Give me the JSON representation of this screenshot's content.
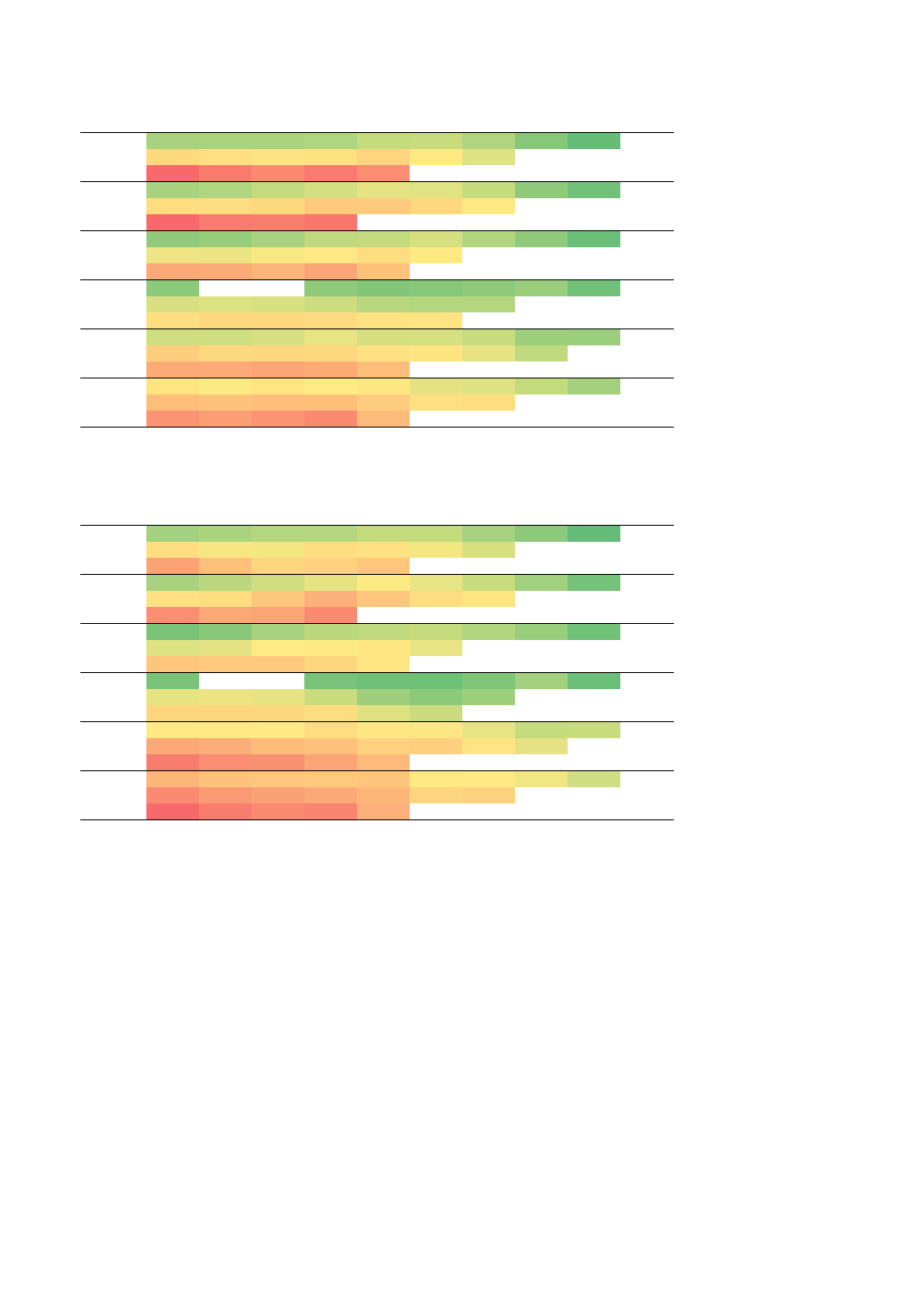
{
  "chart_data": [
    {
      "type": "heatmap",
      "title": "",
      "xlabel": "",
      "ylabel": "",
      "groups": [
        {
          "rows": [
            [
              "#a8d27f",
              "#aad380",
              "#aad380",
              "#aed57f",
              "#c5db7d",
              "#c8dc7e",
              "#b1d57e",
              "#87c77a",
              "#66bd77"
            ],
            [
              "#fed97e",
              "#fedf81",
              "#fee382",
              "#fee282",
              "#fed47f",
              "#fee983",
              "#dde283"
            ],
            [
              "#f8696b",
              "#f97b6e",
              "#fa8b71",
              "#f97a6e",
              "#fa8d72"
            ]
          ]
        },
        {
          "rows": [
            [
              "#a9d27f",
              "#b2d57f",
              "#c3da7d",
              "#d4df81",
              "#e5e383",
              "#e1e383",
              "#c6db7d",
              "#92ca7b",
              "#72c178"
            ],
            [
              "#fedc80",
              "#fedd80",
              "#fed87f",
              "#fec97d",
              "#fec97d",
              "#fed77f",
              "#fee983"
            ],
            [
              "#f8696b",
              "#f97a6e",
              "#f97e6f",
              "#f9766d"
            ]
          ]
        },
        {
          "rows": [
            [
              "#92ca7b",
              "#97cc7b",
              "#a8d27f",
              "#c0d97e",
              "#c3da7d",
              "#d5df80",
              "#b0d57e",
              "#91ca7b",
              "#6abf78"
            ],
            [
              "#eee484",
              "#ece383",
              "#f8e783",
              "#fde883",
              "#fedc80",
              "#feea83"
            ],
            [
              "#fca977",
              "#fcab77",
              "#fdb679",
              "#fba576",
              "#fec27b"
            ]
          ]
        },
        {
          "rows": [
            [
              "#8dc97b",
              null,
              null,
              "#8fca7b",
              "#83c67a",
              "#86c77a",
              "#8fca7b",
              "#9bce7c",
              "#72c178"
            ],
            [
              "#d8e081",
              "#dde283",
              "#d9e081",
              "#ccdd80",
              "#b8d77f",
              "#b4d67e",
              "#b3d67f"
            ],
            [
              "#fede80",
              "#fed97f",
              "#fed97f",
              "#fedb80",
              "#fee382",
              "#fee582"
            ]
          ]
        },
        {
          "rows": [
            [
              "#cddd7f",
              "#cfde80",
              "#d7e081",
              "#e8e383",
              "#d6df80",
              "#d7e081",
              "#c8dc7e",
              "#9ecf7d",
              "#9ccf7d"
            ],
            [
              "#fecd7e",
              "#fed87f",
              "#fed67f",
              "#fed87f",
              "#fee282",
              "#fee582",
              "#e7e383",
              "#bfd97e"
            ],
            [
              "#fcab77",
              "#fcaa77",
              "#fba476",
              "#fcab77",
              "#fdbe7b"
            ]
          ]
        },
        {
          "rows": [
            [
              "#fee582",
              "#feea83",
              "#fee582",
              "#ffeb84",
              "#fee683",
              "#e4e282",
              "#dee283",
              "#c4db7d",
              "#a5d17f"
            ],
            [
              "#fdbe7a",
              "#fec27b",
              "#fdbf7b",
              "#fdbe7a",
              "#fecc7e",
              "#fedf81",
              "#fedd80"
            ],
            [
              "#fa9473",
              "#fb9d75",
              "#fa9473",
              "#fa8b71",
              "#fdbb7a"
            ]
          ]
        }
      ]
    },
    {
      "type": "heatmap",
      "title": "",
      "xlabel": "",
      "ylabel": "",
      "groups": [
        {
          "rows": [
            [
              "#a3d17f",
              "#acd47f",
              "#b4d67e",
              "#b3d67f",
              "#c4db7d",
              "#c4db7d",
              "#a6d27f",
              "#8cc97b",
              "#63bc77"
            ],
            [
              "#fede80",
              "#f6e783",
              "#f3e683",
              "#fedd80",
              "#fee182",
              "#f3e683",
              "#d7e081"
            ],
            [
              "#fba276",
              "#fec07b",
              "#fed57f",
              "#fed17e",
              "#fec77c"
            ]
          ]
        },
        {
          "rows": [
            [
              "#a8d27f",
              "#bbd87e",
              "#d1de80",
              "#e6e383",
              "#feea83",
              "#e8e383",
              "#c9dc7e",
              "#a1d07e",
              "#75c279"
            ],
            [
              "#fee182",
              "#fedc80",
              "#fec67c",
              "#fdb079",
              "#fec57c",
              "#fedc80",
              "#fee582"
            ],
            [
              "#fa8d72",
              "#fca977",
              "#fba476",
              "#fa8b71"
            ]
          ]
        },
        {
          "rows": [
            [
              "#7ac379",
              "#89c77a",
              "#a7d27f",
              "#bcd87e",
              "#c0d97e",
              "#c5db7d",
              "#b2d57f",
              "#98cd7c",
              "#72c178"
            ],
            [
              "#dde283",
              "#e4e282",
              "#feeb84",
              "#feea83",
              "#fee782",
              "#e8e383"
            ],
            [
              "#fec57c",
              "#fec97d",
              "#fec97d",
              "#fed57f",
              "#fee582"
            ]
          ]
        },
        {
          "rows": [
            [
              "#79c379",
              null,
              null,
              "#78c279",
              "#70c178",
              "#70c178",
              "#80c57a",
              "#a2d07e",
              "#6bbf78"
            ],
            [
              "#e7e383",
              "#ece383",
              "#e7e383",
              "#c9dc7e",
              "#9fcf7d",
              "#8dc97b",
              "#9dcf7d"
            ],
            [
              "#fed57f",
              "#fed57f",
              "#fed67f",
              "#fedd80",
              "#e0e282",
              "#cbdc7f"
            ]
          ]
        },
        {
          "rows": [
            [
              "#fee983",
              "#feea83",
              "#fee983",
              "#fedc80",
              "#fee783",
              "#fee783",
              "#e8e383",
              "#c5db7d",
              "#c8dc7e"
            ],
            [
              "#fca977",
              "#fcae78",
              "#fdbc7a",
              "#fdc17b",
              "#fed27f",
              "#fecf7e",
              "#fee582",
              "#e4e282"
            ],
            [
              "#f97d6f",
              "#fa8d72",
              "#fa9072",
              "#fba476",
              "#fdba7a"
            ]
          ]
        },
        {
          "rows": [
            [
              "#fdb679",
              "#fec27b",
              "#fec57c",
              "#fec97d",
              "#fec67c",
              "#feea83",
              "#fee983",
              "#f2e683",
              "#cfde80"
            ],
            [
              "#fa8a71",
              "#fa9a74",
              "#fba176",
              "#fca977",
              "#fdb679",
              "#fed57f",
              "#fed17e"
            ],
            [
              "#f8696b",
              "#f97d6f",
              "#fa8b71",
              "#f9846f",
              "#fcaf78"
            ]
          ]
        }
      ]
    }
  ]
}
